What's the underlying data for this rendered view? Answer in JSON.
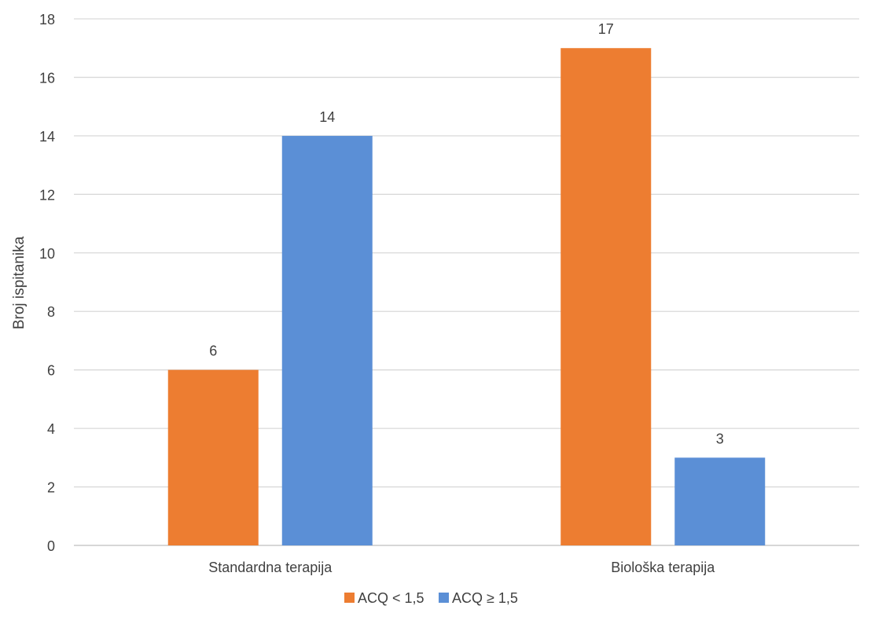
{
  "chart_data": {
    "type": "bar",
    "title": "",
    "xlabel": "",
    "ylabel": "Broj ispitanika",
    "categories": [
      "Standardna terapija",
      "Biološka terapija"
    ],
    "series": [
      {
        "name": "ACQ < 1,5",
        "values": [
          6,
          17
        ],
        "color": "#ED7D31"
      },
      {
        "name": "ACQ ≥ 1,5",
        "values": [
          14,
          3
        ],
        "color": "#5B8FD6"
      }
    ],
    "ylim": [
      0,
      18
    ],
    "yticks": [
      0,
      2,
      4,
      6,
      8,
      10,
      12,
      14,
      16,
      18
    ],
    "grid": true,
    "legend_position": "bottom",
    "data_labels": true
  }
}
